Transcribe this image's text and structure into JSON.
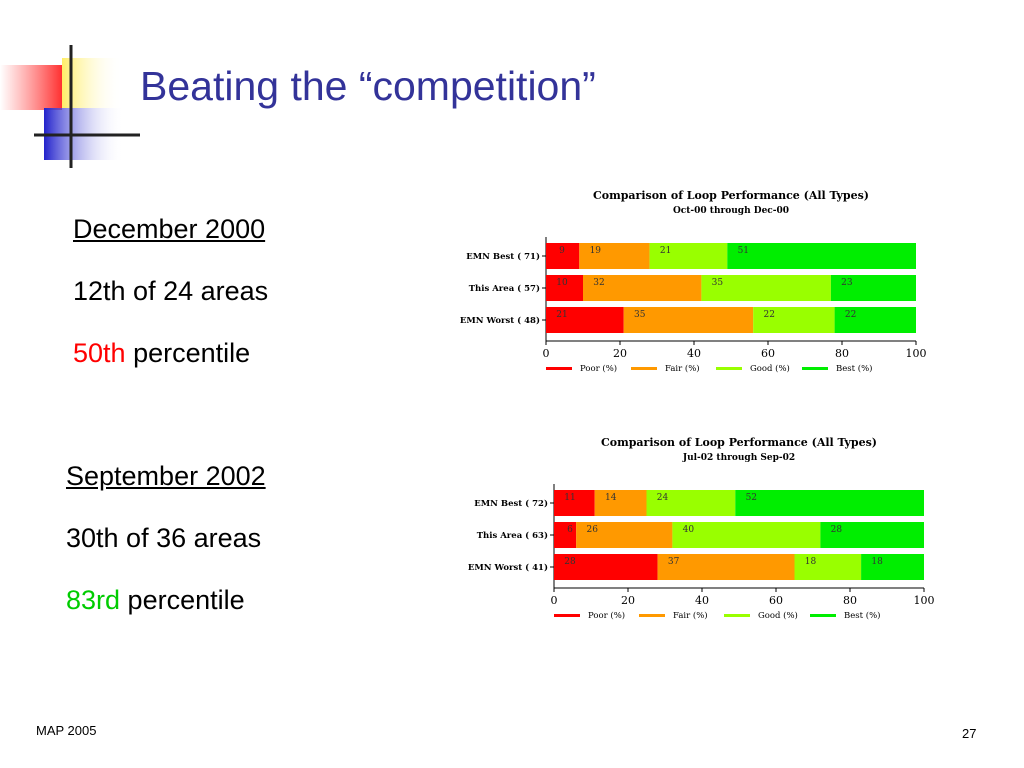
{
  "slide": {
    "title": "Beating the “competition”",
    "footer_left": "MAP 2005",
    "page_number": "27"
  },
  "blocks": [
    {
      "heading": "December 2000",
      "rank": "12th of 24 areas",
      "percentile_value": "50th",
      "percentile_suffix": " percentile",
      "highlight_color": "#ff0000"
    },
    {
      "heading": "September 2002",
      "rank": "30th of 36 areas",
      "percentile_value": "83rd",
      "percentile_suffix": " percentile",
      "highlight_color": "#00cc00"
    }
  ],
  "chart_data": [
    {
      "type": "bar",
      "orientation": "horizontal",
      "stacked": true,
      "title": "Comparison of Loop Performance (All Types)",
      "subtitle": "Oct-00 through Dec-00",
      "categories": [
        "EMN Best ( 71)",
        "This Area ( 57)",
        "EMN Worst ( 48)"
      ],
      "series": [
        {
          "name": "Poor (%)",
          "color": "#ff0000",
          "values": [
            9,
            10,
            21
          ]
        },
        {
          "name": "Fair (%)",
          "color": "#ff9900",
          "values": [
            19,
            32,
            35
          ]
        },
        {
          "name": "Good (%)",
          "color": "#99ff00",
          "values": [
            21,
            35,
            22
          ]
        },
        {
          "name": "Best (%)",
          "color": "#00ee00",
          "values": [
            51,
            23,
            22
          ]
        }
      ],
      "xlim": [
        0,
        100
      ],
      "xticks": [
        "0",
        "20",
        "40",
        "60",
        "80",
        "100"
      ],
      "legend": "bottom"
    },
    {
      "type": "bar",
      "orientation": "horizontal",
      "stacked": true,
      "title": "Comparison of Loop Performance (All Types)",
      "subtitle": "Jul-02 through Sep-02",
      "categories": [
        "EMN Best ( 72)",
        "This Area ( 63)",
        "EMN Worst ( 41)"
      ],
      "series": [
        {
          "name": "Poor (%)",
          "color": "#ff0000",
          "values": [
            11,
            6,
            28
          ]
        },
        {
          "name": "Fair (%)",
          "color": "#ff9900",
          "values": [
            14,
            26,
            37
          ]
        },
        {
          "name": "Good (%)",
          "color": "#99ff00",
          "values": [
            24,
            40,
            18
          ]
        },
        {
          "name": "Best (%)",
          "color": "#00ee00",
          "values": [
            52,
            28,
            18
          ]
        }
      ],
      "xlim": [
        0,
        100
      ],
      "xticks": [
        "0",
        "20",
        "40",
        "60",
        "80",
        "100"
      ],
      "legend": "bottom"
    }
  ]
}
